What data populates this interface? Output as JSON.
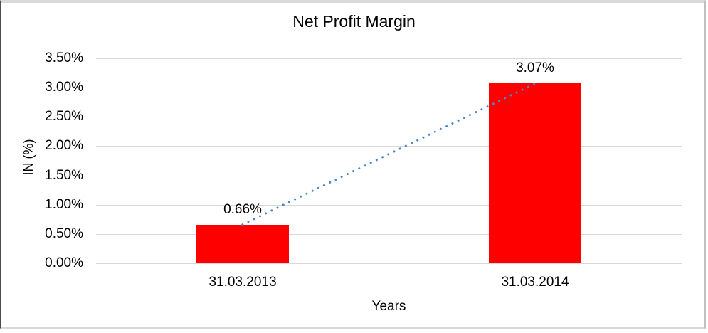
{
  "chart_data": {
    "type": "bar",
    "title": "Net Profit Margin",
    "xlabel": "Years",
    "ylabel": "IN (%)",
    "categories": [
      "31.03.2013",
      "31.03.2014"
    ],
    "series": [
      {
        "name": "Net Profit Margin",
        "values": [
          0.66,
          3.07
        ]
      }
    ],
    "values": [
      0.66,
      3.07
    ],
    "data_labels": [
      "0.66%",
      "3.07%"
    ],
    "ylim": [
      0,
      3.5
    ],
    "yticks": [
      "0.00%",
      "0.50%",
      "1.00%",
      "1.50%",
      "2.00%",
      "2.50%",
      "3.00%",
      "3.50%"
    ],
    "grid": "horizontal",
    "legend": "none",
    "trendline": {
      "type": "linear",
      "style": "dotted",
      "from": [
        0.66,
        3.07
      ]
    },
    "colors": {
      "bar": "#ff0000",
      "trendline": "#4a86c8",
      "gridline": "#d9d9d9",
      "text": "#000000"
    }
  }
}
